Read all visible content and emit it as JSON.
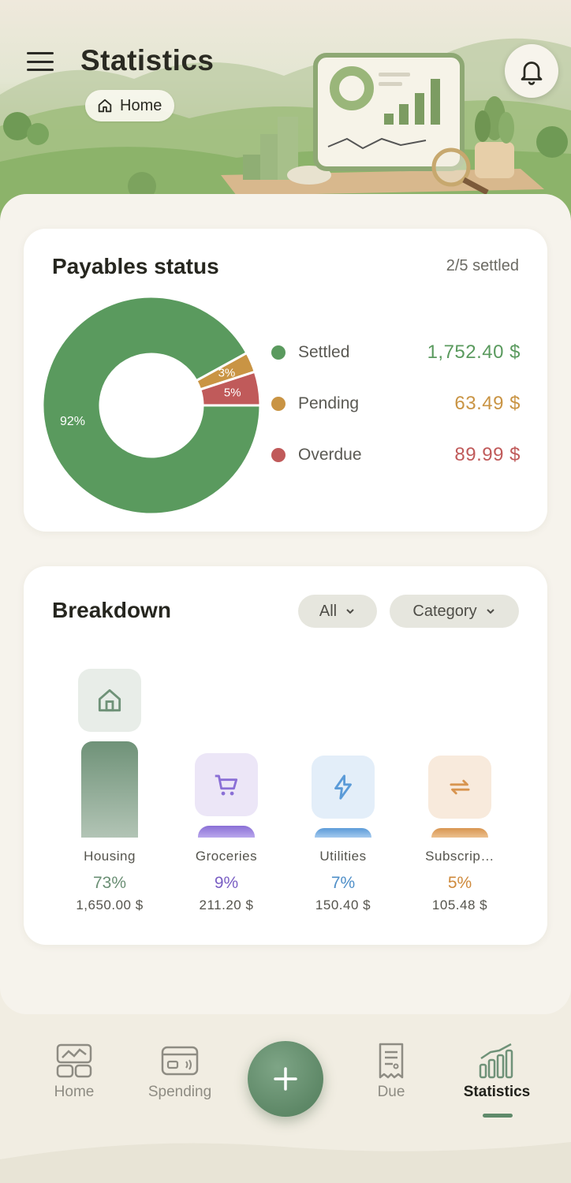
{
  "header": {
    "title": "Statistics",
    "breadcrumb_label": "Home"
  },
  "payables": {
    "title": "Payables status",
    "settled_count": "2/5 settled",
    "chart_data": {
      "type": "pie",
      "categories": [
        "Settled",
        "Pending",
        "Overdue"
      ],
      "values": [
        92,
        3,
        5
      ],
      "labels": [
        "92%",
        "3%",
        "5%"
      ],
      "colors": [
        "#5a9a5e",
        "#c99444",
        "#c05a5a"
      ]
    },
    "legend": [
      {
        "label": "Settled",
        "value": "1,752.40 $",
        "color": "#5a9a5e"
      },
      {
        "label": "Pending",
        "value": "63.49 $",
        "color": "#c99444"
      },
      {
        "label": "Overdue",
        "value": "89.99 $",
        "color": "#c05a5a"
      }
    ]
  },
  "breakdown": {
    "title": "Breakdown",
    "filter_all": "All",
    "filter_category": "Category",
    "chart_data": {
      "type": "bar",
      "categories": [
        "Housing",
        "Groceries",
        "Utilities",
        "Subscrip…"
      ],
      "values": [
        73,
        9,
        7,
        5
      ],
      "percent_labels": [
        "73%",
        "9%",
        "7%",
        "5%"
      ],
      "amounts": [
        "1,650.00 $",
        "211.20 $",
        "150.40 $",
        "105.48 $"
      ]
    },
    "items": [
      {
        "name": "Housing",
        "icon": "home-icon",
        "accent": "#6f9278",
        "icon_bg": "#e8ede8",
        "pct_color": "#6a8f74"
      },
      {
        "name": "Groceries",
        "icon": "cart-icon",
        "accent": "#8a6fd6",
        "icon_bg": "#ece6f7",
        "pct_color": "#7a5fc4"
      },
      {
        "name": "Utilities",
        "icon": "lightning-icon",
        "accent": "#5b9bd8",
        "icon_bg": "#e3eef9",
        "pct_color": "#4f8fc8"
      },
      {
        "name": "Subscrip…",
        "icon": "repeat-icon",
        "accent": "#d89550",
        "icon_bg": "#f8eadc",
        "pct_color": "#cf8a3c"
      }
    ]
  },
  "nav": {
    "items": [
      {
        "label": "Home",
        "icon": "dashboard-icon"
      },
      {
        "label": "Spending",
        "icon": "card-icon"
      },
      {
        "label": "Due",
        "icon": "receipt-icon"
      },
      {
        "label": "Statistics",
        "icon": "stats-icon",
        "active": true
      }
    ],
    "fab_icon": "plus-icon"
  }
}
